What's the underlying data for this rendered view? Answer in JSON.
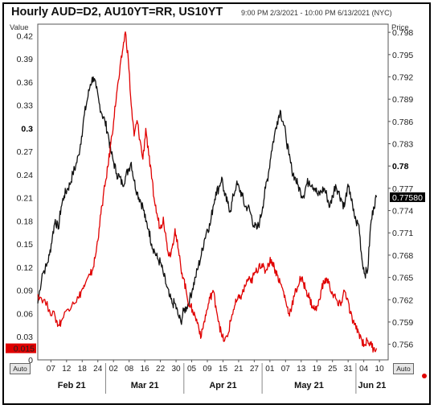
{
  "title": "Hourly AUD=D2, AU10YT=RR, US10YT",
  "subtitle": "9:00 PM 2/3/2021 - 10:00 PM 6/13/2021 (NYC)",
  "left_axis_label": "Value",
  "right_axis_label": "Price",
  "auto_label": "Auto",
  "colors": {
    "spread": "#e00000",
    "aud": "#111111",
    "grid": "#c8c8c8"
  },
  "chart_data": {
    "type": "line",
    "title": "Hourly AUD=D2, AU10YT=RR, US10YT",
    "subtitle": "9:00 PM 2/3/2021 - 10:00 PM 6/13/2021 (NYC)",
    "grid": true,
    "left_axis": {
      "label": "Value",
      "ylim": [
        0,
        0.435
      ],
      "ticks": [
        "0.42",
        "0.39",
        "0.36",
        "0.33",
        "0.3",
        "0.27",
        "0.24",
        "0.21",
        "0.18",
        "0.15",
        "0.12",
        "0.09",
        "0.06",
        "0.03",
        "0"
      ],
      "bold_ticks": [
        "0.3"
      ],
      "current_value": "0.015"
    },
    "right_axis": {
      "label": "Price",
      "ylim": [
        0.7539,
        0.7991
      ],
      "ticks": [
        "0.798",
        "0.795",
        "0.792",
        "0.789",
        "0.786",
        "0.783",
        "0.78",
        "0.777",
        "0.774",
        "0.771",
        "0.768",
        "0.765",
        "0.762",
        "0.759",
        "0.756"
      ],
      "bold_ticks": [
        "0.78"
      ],
      "current_value": "0.77580"
    },
    "x_axis": {
      "day_ticks": [
        "07",
        "12",
        "18",
        "24",
        "02",
        "08",
        "16",
        "22",
        "30",
        "05",
        "09",
        "15",
        "21",
        "27",
        "01",
        "07",
        "13",
        "19",
        "25",
        "31",
        "04",
        "10"
      ],
      "months": [
        "Feb 21",
        "Mar 21",
        "Apr 21",
        "May 21",
        "Jun 21"
      ]
    },
    "series": [
      {
        "axis": "right",
        "points": [
          [
            0,
            0.7615
          ],
          [
            1.5,
            0.7655
          ],
          [
            3,
            0.7665
          ],
          [
            4,
            0.768
          ],
          [
            5,
            0.7705
          ],
          [
            6,
            0.7728
          ],
          [
            7,
            0.7715
          ],
          [
            8,
            0.7745
          ],
          [
            9,
            0.776
          ],
          [
            10,
            0.7768
          ],
          [
            11,
            0.7775
          ],
          [
            12,
            0.779
          ],
          [
            13,
            0.78
          ],
          [
            14,
            0.7815
          ],
          [
            15,
            0.784
          ],
          [
            16,
            0.787
          ],
          [
            17,
            0.789
          ],
          [
            18,
            0.791
          ],
          [
            19,
            0.792
          ],
          [
            20,
            0.7905
          ],
          [
            21,
            0.7885
          ],
          [
            22,
            0.787
          ],
          [
            23,
            0.786
          ],
          [
            24,
            0.7845
          ],
          [
            25,
            0.782
          ],
          [
            26,
            0.7805
          ],
          [
            27,
            0.779
          ],
          [
            28,
            0.7785
          ],
          [
            29,
            0.7775
          ],
          [
            30,
            0.7785
          ],
          [
            31,
            0.7795
          ],
          [
            32,
            0.7805
          ],
          [
            33,
            0.778
          ],
          [
            34,
            0.7765
          ],
          [
            35,
            0.7755
          ],
          [
            36,
            0.7745
          ],
          [
            37,
            0.7725
          ],
          [
            38,
            0.7715
          ],
          [
            39,
            0.7695
          ],
          [
            40,
            0.7685
          ],
          [
            41,
            0.7675
          ],
          [
            42,
            0.767
          ],
          [
            43,
            0.7655
          ],
          [
            44,
            0.764
          ],
          [
            45,
            0.7625
          ],
          [
            46,
            0.7615
          ],
          [
            47,
            0.7615
          ],
          [
            48,
            0.76
          ],
          [
            49,
            0.759
          ],
          [
            50,
            0.7605
          ],
          [
            51,
            0.761
          ],
          [
            52,
            0.762
          ],
          [
            53,
            0.7635
          ],
          [
            54,
            0.765
          ],
          [
            55,
            0.7665
          ],
          [
            56,
            0.768
          ],
          [
            57,
            0.77
          ],
          [
            58,
            0.7715
          ],
          [
            59,
            0.772
          ],
          [
            60,
            0.7745
          ],
          [
            61,
            0.7765
          ],
          [
            62,
            0.777
          ],
          [
            63,
            0.7785
          ],
          [
            64,
            0.776
          ],
          [
            65,
            0.775
          ],
          [
            66,
            0.774
          ],
          [
            67,
            0.776
          ],
          [
            68,
            0.7775
          ],
          [
            69,
            0.777
          ],
          [
            70,
            0.776
          ],
          [
            71,
            0.7745
          ],
          [
            72,
            0.7745
          ],
          [
            73,
            0.7735
          ],
          [
            74,
            0.772
          ],
          [
            75,
            0.7715
          ],
          [
            76,
            0.7725
          ],
          [
            77,
            0.7745
          ],
          [
            78,
            0.777
          ],
          [
            79,
            0.779
          ],
          [
            80,
            0.782
          ],
          [
            81,
            0.784
          ],
          [
            82,
            0.786
          ],
          [
            83,
            0.7875
          ],
          [
            84,
            0.786
          ],
          [
            85,
            0.784
          ],
          [
            86,
            0.7815
          ],
          [
            87,
            0.7795
          ],
          [
            88,
            0.7785
          ],
          [
            89,
            0.7775
          ],
          [
            90,
            0.7765
          ],
          [
            91,
            0.776
          ],
          [
            92,
            0.7775
          ],
          [
            93,
            0.778
          ],
          [
            94,
            0.7775
          ],
          [
            95,
            0.777
          ],
          [
            96,
            0.776
          ],
          [
            97,
            0.7765
          ],
          [
            98,
            0.777
          ],
          [
            99,
            0.776
          ],
          [
            100,
            0.7745
          ],
          [
            101,
            0.776
          ],
          [
            102,
            0.7775
          ],
          [
            103,
            0.7765
          ],
          [
            104,
            0.7755
          ],
          [
            105,
            0.7745
          ],
          [
            106,
            0.777
          ],
          [
            107,
            0.7765
          ],
          [
            108,
            0.774
          ],
          [
            109,
            0.7725
          ],
          [
            110,
            0.772
          ],
          [
            111,
            0.7675
          ],
          [
            112,
            0.7655
          ],
          [
            113,
            0.766
          ],
          [
            114,
            0.772
          ],
          [
            115,
            0.7745
          ],
          [
            116,
            0.7758
          ]
        ]
      },
      {
        "axis": "left",
        "points": [
          [
            0,
            0.085
          ],
          [
            2,
            0.078
          ],
          [
            4,
            0.065
          ],
          [
            6,
            0.055
          ],
          [
            7,
            0.045
          ],
          [
            8,
            0.05
          ],
          [
            10,
            0.065
          ],
          [
            12,
            0.075
          ],
          [
            14,
            0.08
          ],
          [
            15,
            0.09
          ],
          [
            16,
            0.095
          ],
          [
            18,
            0.11
          ],
          [
            19,
            0.12
          ],
          [
            20,
            0.14
          ],
          [
            21,
            0.17
          ],
          [
            22,
            0.2
          ],
          [
            23,
            0.225
          ],
          [
            24,
            0.25
          ],
          [
            25,
            0.28
          ],
          [
            26,
            0.31
          ],
          [
            27,
            0.345
          ],
          [
            28,
            0.37
          ],
          [
            29,
            0.4
          ],
          [
            30,
            0.425
          ],
          [
            31,
            0.39
          ],
          [
            32,
            0.33
          ],
          [
            33,
            0.29
          ],
          [
            34,
            0.31
          ],
          [
            35,
            0.285
          ],
          [
            36,
            0.26
          ],
          [
            37,
            0.3
          ],
          [
            38,
            0.265
          ],
          [
            39,
            0.235
          ],
          [
            40,
            0.205
          ],
          [
            41,
            0.185
          ],
          [
            42,
            0.17
          ],
          [
            43,
            0.185
          ],
          [
            44,
            0.155
          ],
          [
            45,
            0.135
          ],
          [
            46,
            0.145
          ],
          [
            47,
            0.17
          ],
          [
            48,
            0.145
          ],
          [
            49,
            0.12
          ],
          [
            50,
            0.105
          ],
          [
            51,
            0.085
          ],
          [
            52,
            0.07
          ],
          [
            53,
            0.065
          ],
          [
            54,
            0.055
          ],
          [
            55,
            0.045
          ],
          [
            56,
            0.03
          ],
          [
            57,
            0.05
          ],
          [
            58,
            0.065
          ],
          [
            59,
            0.08
          ],
          [
            60,
            0.09
          ],
          [
            61,
            0.07
          ],
          [
            62,
            0.05
          ],
          [
            63,
            0.03
          ],
          [
            64,
            0.025
          ],
          [
            65,
            0.03
          ],
          [
            66,
            0.05
          ],
          [
            67,
            0.065
          ],
          [
            68,
            0.075
          ],
          [
            69,
            0.08
          ],
          [
            70,
            0.085
          ],
          [
            71,
            0.095
          ],
          [
            72,
            0.105
          ],
          [
            73,
            0.1
          ],
          [
            74,
            0.11
          ],
          [
            75,
            0.115
          ],
          [
            76,
            0.125
          ],
          [
            77,
            0.12
          ],
          [
            78,
            0.115
          ],
          [
            79,
            0.125
          ],
          [
            80,
            0.13
          ],
          [
            81,
            0.12
          ],
          [
            82,
            0.11
          ],
          [
            83,
            0.1
          ],
          [
            84,
            0.09
          ],
          [
            85,
            0.075
          ],
          [
            86,
            0.06
          ],
          [
            87,
            0.07
          ],
          [
            88,
            0.085
          ],
          [
            89,
            0.095
          ],
          [
            90,
            0.105
          ],
          [
            91,
            0.1
          ],
          [
            92,
            0.09
          ],
          [
            93,
            0.08
          ],
          [
            94,
            0.07
          ],
          [
            95,
            0.065
          ],
          [
            96,
            0.07
          ],
          [
            97,
            0.09
          ],
          [
            98,
            0.1
          ],
          [
            99,
            0.105
          ],
          [
            100,
            0.095
          ],
          [
            101,
            0.085
          ],
          [
            102,
            0.08
          ],
          [
            103,
            0.07
          ],
          [
            104,
            0.075
          ],
          [
            105,
            0.09
          ],
          [
            106,
            0.08
          ],
          [
            107,
            0.06
          ],
          [
            108,
            0.05
          ],
          [
            109,
            0.04
          ],
          [
            110,
            0.035
          ],
          [
            111,
            0.025
          ],
          [
            112,
            0.02
          ],
          [
            113,
            0.025
          ],
          [
            114,
            0.02
          ],
          [
            115,
            0.015
          ],
          [
            116,
            0.015
          ]
        ]
      }
    ]
  }
}
